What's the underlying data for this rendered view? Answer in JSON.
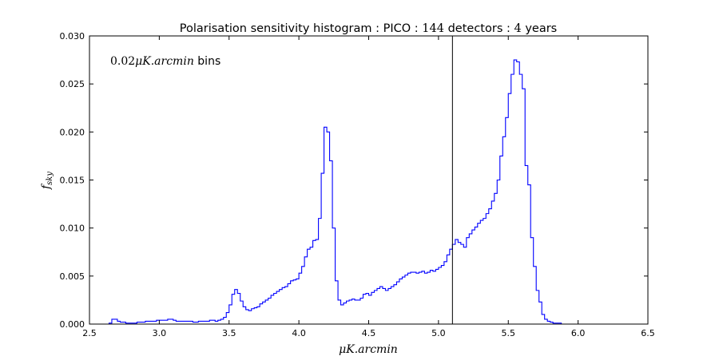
{
  "chart_data": {
    "type": "histogram",
    "title": {
      "prefix": "Polarisation sensitivity histogram : PICO : ",
      "detectors": "144",
      "middle": " detectors : ",
      "years": "4",
      "suffix": " years"
    },
    "xlabel": "μK.arcmin",
    "ylabel": {
      "base": "f",
      "sub": "sky"
    },
    "annotation": {
      "value": "0.02",
      "unit": "μK.arcmin",
      "suffix": " bins"
    },
    "xlim": [
      2.5,
      6.5
    ],
    "ylim": [
      0,
      0.03
    ],
    "xticks": [
      "2.5",
      "3.0",
      "3.5",
      "4.0",
      "4.5",
      "5.0",
      "5.5",
      "6.0",
      "6.5"
    ],
    "yticks": [
      "0.000",
      "0.005",
      "0.010",
      "0.015",
      "0.020",
      "0.025",
      "0.030"
    ],
    "vline_x": 5.1,
    "bin_width": 0.02,
    "bin_start": 2.5,
    "series": [
      {
        "color": "#0000ff",
        "values": [
          0,
          0,
          0,
          0,
          0,
          0,
          0,
          0.0001,
          0.0005,
          0.0005,
          0.0003,
          0.0002,
          0.0002,
          0.0001,
          0.0001,
          0.0001,
          0.0001,
          0.0002,
          0.0002,
          0.0002,
          0.0003,
          0.0003,
          0.0003,
          0.0003,
          0.0004,
          0.0004,
          0.0004,
          0.0004,
          0.0005,
          0.0005,
          0.0004,
          0.0003,
          0.0003,
          0.0003,
          0.0003,
          0.0003,
          0.0003,
          0.0002,
          0.0002,
          0.0003,
          0.0003,
          0.0003,
          0.0003,
          0.0004,
          0.0004,
          0.0003,
          0.0004,
          0.0005,
          0.0007,
          0.0012,
          0.002,
          0.0031,
          0.0036,
          0.0032,
          0.0024,
          0.0018,
          0.0015,
          0.0014,
          0.0016,
          0.0017,
          0.0018,
          0.0021,
          0.0023,
          0.0025,
          0.0027,
          0.003,
          0.0032,
          0.0034,
          0.0036,
          0.0038,
          0.0039,
          0.0042,
          0.0045,
          0.0046,
          0.0047,
          0.0053,
          0.006,
          0.007,
          0.0078,
          0.008,
          0.0087,
          0.0088,
          0.011,
          0.0157,
          0.0205,
          0.02,
          0.017,
          0.01,
          0.0045,
          0.0025,
          0.002,
          0.0022,
          0.0024,
          0.0025,
          0.0026,
          0.0025,
          0.0025,
          0.0027,
          0.0031,
          0.0032,
          0.003,
          0.0033,
          0.0035,
          0.0037,
          0.0039,
          0.0037,
          0.0035,
          0.0037,
          0.0039,
          0.0041,
          0.0044,
          0.0047,
          0.0049,
          0.0051,
          0.0053,
          0.0054,
          0.0054,
          0.0053,
          0.0054,
          0.0055,
          0.0053,
          0.0054,
          0.0056,
          0.0055,
          0.0057,
          0.0059,
          0.0061,
          0.0065,
          0.0072,
          0.0078,
          0.0083,
          0.0088,
          0.0085,
          0.0083,
          0.008,
          0.009,
          0.0094,
          0.0098,
          0.0101,
          0.0105,
          0.0108,
          0.011,
          0.0115,
          0.012,
          0.0128,
          0.0136,
          0.015,
          0.0175,
          0.0195,
          0.0215,
          0.024,
          0.026,
          0.0275,
          0.0273,
          0.026,
          0.0245,
          0.0165,
          0.0145,
          0.009,
          0.006,
          0.0035,
          0.0023,
          0.001,
          0.0005,
          0.0003,
          0.0002,
          0.0001,
          0.0001,
          0.0001,
          0,
          0
        ]
      }
    ]
  }
}
